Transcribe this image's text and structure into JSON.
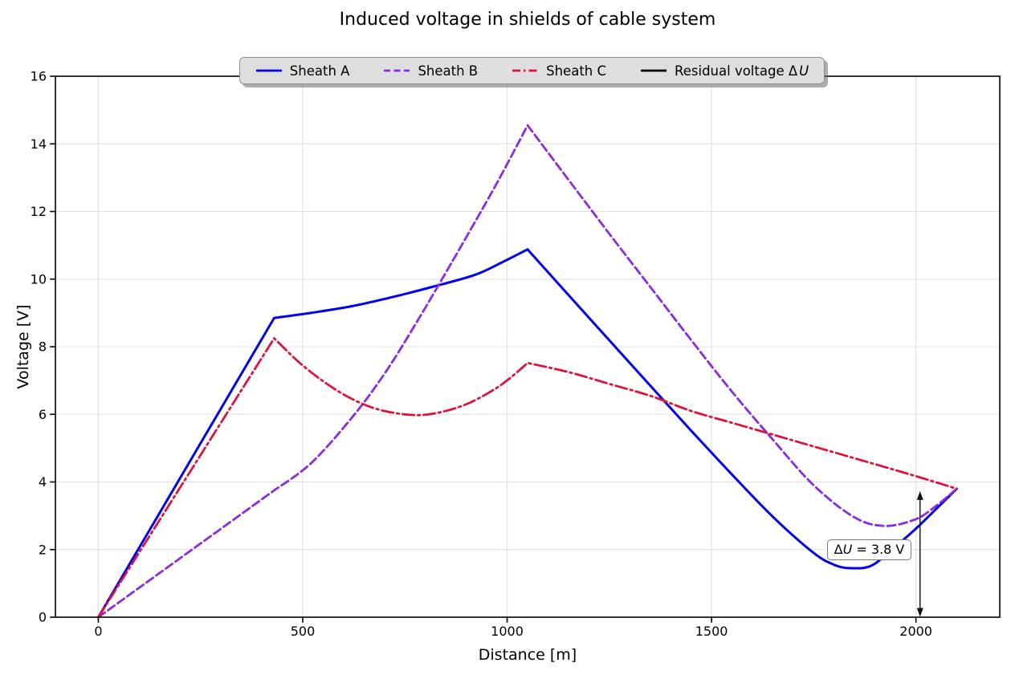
{
  "title": "Induced voltage in shields of cable system",
  "xlabel": "Distance [m]",
  "ylabel": "Voltage [V]",
  "legend": {
    "items": [
      {
        "label": "Sheath A",
        "var": "",
        "color": "#0000ee",
        "style": "solid"
      },
      {
        "label": "Sheath B",
        "var": "",
        "color": "#8a2be2",
        "style": "dashed"
      },
      {
        "label": "Sheath C",
        "var": "",
        "color": "#dc143c",
        "style": "dashdot"
      },
      {
        "label": "Residual voltage Δ",
        "var": "U",
        "color": "#000000",
        "style": "solid"
      }
    ]
  },
  "annotation": {
    "pre": "Δ",
    "var": "U",
    "post": " = 3.8 V"
  },
  "colors": {
    "sheath_a": "#0000ee",
    "sheath_b": "#8a2be2",
    "sheath_c": "#dc143c",
    "residual": "#000000",
    "grid": "#e0e0e0",
    "spine": "#000000",
    "legend_face": "#dedede"
  },
  "chart_data": {
    "type": "line",
    "title": "Induced voltage in shields of cable system",
    "xlabel": "Distance [m]",
    "ylabel": "Voltage [V]",
    "xlim": [
      -105,
      2205
    ],
    "ylim": [
      0,
      16
    ],
    "xticks": [
      0,
      500,
      1000,
      1500,
      2000
    ],
    "yticks": [
      0,
      2,
      4,
      6,
      8,
      10,
      12,
      14,
      16
    ],
    "grid": true,
    "legend_position": "upper center",
    "residual_voltage_V": 3.8,
    "series": [
      {
        "name": "Sheath A",
        "color": "#0000ee",
        "line_style": "solid",
        "line_width": 3,
        "segments": [
          [
            [
              0,
              0
            ],
            [
              430,
              8.85
            ]
          ],
          [
            [
              430,
              8.85
            ],
            [
              520,
              9.0
            ],
            [
              620,
              9.2
            ],
            [
              720,
              9.47
            ],
            [
              820,
              9.78
            ],
            [
              920,
              10.12
            ],
            [
              985,
              10.48
            ],
            [
              1050,
              10.88
            ]
          ],
          [
            [
              1050,
              10.88
            ],
            [
              1150,
              9.53
            ],
            [
              1250,
              8.19
            ],
            [
              1350,
              6.85
            ],
            [
              1450,
              5.52
            ],
            [
              1550,
              4.22
            ],
            [
              1650,
              2.97
            ],
            [
              1750,
              1.9
            ],
            [
              1800,
              1.55
            ],
            [
              1840,
              1.45
            ],
            [
              1890,
              1.52
            ],
            [
              1940,
              1.99
            ],
            [
              2000,
              2.62
            ],
            [
              2050,
              3.21
            ],
            [
              2100,
              3.8
            ]
          ]
        ]
      },
      {
        "name": "Sheath B",
        "color": "#8a2be2",
        "line_style": "dashed",
        "line_width": 2.8,
        "segments": [
          [
            [
              0,
              0
            ],
            [
              430,
              3.75
            ]
          ],
          [
            [
              430,
              3.75
            ],
            [
              520,
              4.55
            ],
            [
              620,
              5.9
            ],
            [
              700,
              7.2
            ],
            [
              780,
              8.75
            ],
            [
              860,
              10.4
            ],
            [
              950,
              12.3
            ],
            [
              1000,
              13.4
            ],
            [
              1050,
              14.55
            ]
          ],
          [
            [
              1050,
              14.55
            ],
            [
              1150,
              12.94
            ],
            [
              1250,
              11.34
            ],
            [
              1350,
              9.77
            ],
            [
              1450,
              8.2
            ],
            [
              1550,
              6.67
            ],
            [
              1650,
              5.25
            ],
            [
              1750,
              3.9
            ],
            [
              1850,
              2.95
            ],
            [
              1925,
              2.7
            ],
            [
              2000,
              2.9
            ],
            [
              2050,
              3.3
            ],
            [
              2100,
              3.8
            ]
          ]
        ]
      },
      {
        "name": "Sheath C",
        "color": "#dc143c",
        "line_style": "dashdot",
        "line_width": 2.8,
        "segments": [
          [
            [
              0,
              0
            ],
            [
              430,
              8.25
            ]
          ],
          [
            [
              430,
              8.25
            ],
            [
              490,
              7.55
            ],
            [
              550,
              6.98
            ],
            [
              610,
              6.52
            ],
            [
              670,
              6.2
            ],
            [
              730,
              6.03
            ],
            [
              790,
              5.98
            ],
            [
              850,
              6.1
            ],
            [
              910,
              6.35
            ],
            [
              970,
              6.75
            ],
            [
              1010,
              7.1
            ],
            [
              1050,
              7.52
            ]
          ],
          [
            [
              1050,
              7.52
            ],
            [
              1150,
              7.25
            ],
            [
              1250,
              6.9
            ],
            [
              1350,
              6.55
            ],
            [
              1450,
              6.1
            ],
            [
              1550,
              5.75
            ],
            [
              1650,
              5.4
            ],
            [
              1750,
              5.05
            ],
            [
              1850,
              4.7
            ],
            [
              1950,
              4.35
            ],
            [
              2025,
              4.08
            ],
            [
              2100,
              3.8
            ]
          ]
        ]
      },
      {
        "name": "Residual voltage ΔU",
        "color": "#000000",
        "line_style": "solid",
        "line_width": 1.5,
        "represented_by": "double-headed arrow at x = 2010 m from 0 V to 3.8 V",
        "segments": []
      }
    ],
    "annotation": {
      "text": "ΔU = 3.8 V",
      "box_position": {
        "x": 1782,
        "y": 2.3
      },
      "arrow": {
        "x": 2010,
        "y_from": 0,
        "y_to": 3.73
      }
    }
  }
}
